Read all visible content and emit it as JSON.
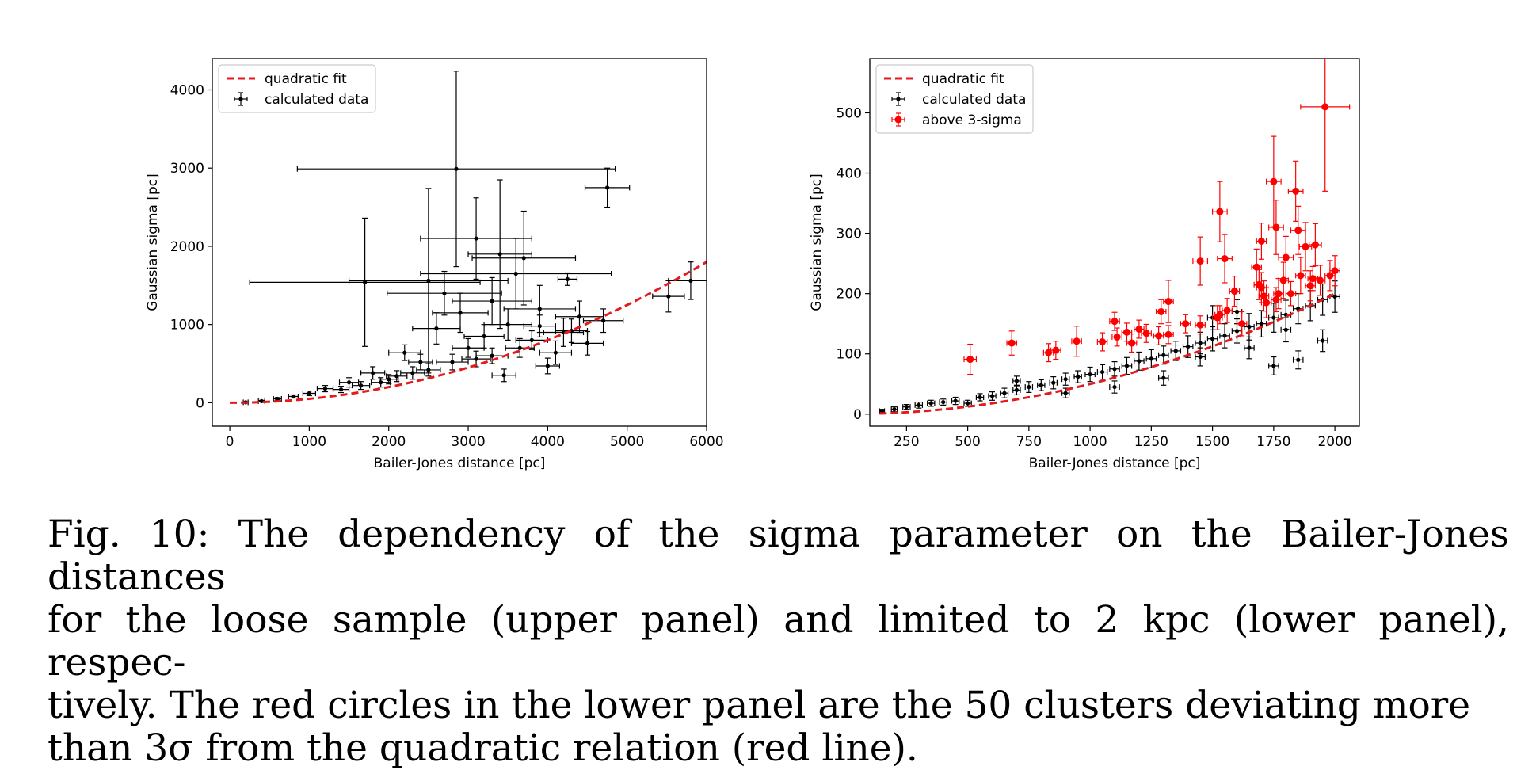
{
  "caption": {
    "line1": "Fig. 10: The dependency of the sigma parameter on the Bailer-Jones distances",
    "line2": "for the loose sample (upper panel) and limited to 2 kpc (lower panel), respec-",
    "line3": "tively. The red circles in the lower panel are the 50 clusters deviating more",
    "line4": "than 3σ from the quadratic relation (red line)."
  },
  "colors": {
    "fit": "#e41a1c",
    "data": "#000000",
    "outlier": "#ff0000"
  },
  "chart_data": [
    {
      "type": "scatter",
      "xlabel": "Bailer-Jones distance [pc]",
      "ylabel": "Gaussian sigma [pc]",
      "xlim": [
        -220,
        6000
      ],
      "ylim": [
        -300,
        4400
      ],
      "xticks": [
        0,
        1000,
        2000,
        3000,
        4000,
        5000,
        6000
      ],
      "yticks": [
        0,
        1000,
        2000,
        3000,
        4000
      ],
      "legend_position": "upper-left",
      "fit": {
        "name": "quadratic fit",
        "a": 5e-05,
        "x_range": [
          0,
          6000
        ]
      },
      "series": [
        {
          "name": "calculated data",
          "points": [
            [
              2850,
              2990,
              2000,
              1250
            ],
            [
              4750,
              2750,
              280,
              250
            ],
            [
              3100,
              2100,
              700,
              520
            ],
            [
              3700,
              1850,
              650,
              600
            ],
            [
              3400,
              1900,
              400,
              950
            ],
            [
              1700,
              1540,
              1450,
              820
            ],
            [
              2500,
              1560,
              1000,
              1180
            ],
            [
              4250,
              1580,
              120,
              80
            ],
            [
              3600,
              1650,
              1200,
              450
            ],
            [
              2700,
              1400,
              720,
              280
            ],
            [
              5520,
              1360,
              200,
              200
            ],
            [
              5800,
              1560,
              280,
              240
            ],
            [
              3300,
              1300,
              500,
              300
            ],
            [
              3900,
              1200,
              450,
              300
            ],
            [
              2900,
              1150,
              350,
              250
            ],
            [
              4400,
              1100,
              300,
              200
            ],
            [
              4700,
              1050,
              250,
              150
            ],
            [
              3500,
              1000,
              300,
              200
            ],
            [
              2600,
              950,
              300,
              200
            ],
            [
              4200,
              900,
              250,
              180
            ],
            [
              4500,
              760,
              200,
              150
            ],
            [
              3200,
              850,
              250,
              150
            ],
            [
              3800,
              800,
              200,
              120
            ],
            [
              4100,
              640,
              200,
              150
            ],
            [
              3000,
              700,
              200,
              120
            ],
            [
              2200,
              640,
              200,
              100
            ],
            [
              4000,
              470,
              150,
              100
            ],
            [
              2400,
              520,
              150,
              100
            ],
            [
              1800,
              380,
              150,
              80
            ],
            [
              3450,
              350,
              150,
              80
            ],
            [
              1500,
              260,
              120,
              60
            ],
            [
              2000,
              300,
              120,
              60
            ],
            [
              1200,
              180,
              100,
              40
            ],
            [
              1000,
              120,
              80,
              30
            ],
            [
              800,
              80,
              60,
              20
            ],
            [
              600,
              50,
              50,
              15
            ],
            [
              400,
              20,
              40,
              10
            ],
            [
              200,
              5,
              30,
              5
            ],
            [
              2800,
              520,
              200,
              100
            ],
            [
              3300,
              600,
              200,
              100
            ],
            [
              2500,
              420,
              150,
              80
            ],
            [
              3650,
              700,
              180,
              120
            ],
            [
              4300,
              920,
              200,
              150
            ],
            [
              2300,
              380,
              150,
              80
            ],
            [
              1900,
              260,
              120,
              60
            ],
            [
              1400,
              170,
              100,
              40
            ],
            [
              3100,
              560,
              180,
              100
            ],
            [
              3900,
              980,
              200,
              140
            ],
            [
              2100,
              340,
              130,
              70
            ],
            [
              1650,
              220,
              110,
              50
            ]
          ]
        }
      ]
    },
    {
      "type": "scatter",
      "xlabel": "Bailer-Jones distance [pc]",
      "ylabel": "Gaussian sigma [pc]",
      "xlim": [
        100,
        2100
      ],
      "ylim": [
        -20,
        590
      ],
      "xticks": [
        250,
        500,
        750,
        1000,
        1250,
        1500,
        1750,
        2000
      ],
      "yticks": [
        0,
        100,
        200,
        300,
        400,
        500
      ],
      "legend_position": "upper-left",
      "fit": {
        "name": "quadratic fit",
        "a": 5e-05,
        "x_range": [
          140,
          2000
        ]
      },
      "series": [
        {
          "name": "calculated data",
          "points": [
            [
              150,
              5,
              10,
              3
            ],
            [
              200,
              8,
              12,
              4
            ],
            [
              250,
              12,
              15,
              4
            ],
            [
              300,
              15,
              15,
              5
            ],
            [
              350,
              18,
              15,
              5
            ],
            [
              400,
              20,
              15,
              5
            ],
            [
              450,
              22,
              15,
              6
            ],
            [
              500,
              18,
              15,
              5
            ],
            [
              550,
              28,
              15,
              6
            ],
            [
              600,
              30,
              15,
              7
            ],
            [
              650,
              35,
              15,
              8
            ],
            [
              700,
              40,
              15,
              8
            ],
            [
              750,
              45,
              15,
              9
            ],
            [
              800,
              48,
              15,
              9
            ],
            [
              850,
              52,
              15,
              10
            ],
            [
              900,
              58,
              15,
              10
            ],
            [
              950,
              62,
              15,
              10
            ],
            [
              1000,
              66,
              20,
              12
            ],
            [
              1050,
              70,
              20,
              12
            ],
            [
              1100,
              75,
              20,
              12
            ],
            [
              1150,
              80,
              20,
              14
            ],
            [
              1200,
              88,
              20,
              15
            ],
            [
              1250,
              92,
              20,
              15
            ],
            [
              1300,
              98,
              20,
              15
            ],
            [
              1350,
              105,
              20,
              16
            ],
            [
              1400,
              112,
              20,
              18
            ],
            [
              1450,
              118,
              20,
              18
            ],
            [
              1500,
              125,
              20,
              20
            ],
            [
              1550,
              130,
              20,
              20
            ],
            [
              1600,
              138,
              20,
              20
            ],
            [
              1650,
              145,
              20,
              22
            ],
            [
              1700,
              150,
              20,
              22
            ],
            [
              1750,
              160,
              20,
              24
            ],
            [
              1800,
              165,
              20,
              24
            ],
            [
              1850,
              175,
              20,
              25
            ],
            [
              1900,
              180,
              20,
              25
            ],
            [
              1950,
              190,
              20,
              26
            ],
            [
              2000,
              195,
              20,
              26
            ],
            [
              1950,
              122,
              20,
              18
            ],
            [
              1850,
              90,
              20,
              15
            ],
            [
              1750,
              80,
              20,
              15
            ],
            [
              1600,
              170,
              20,
              20
            ],
            [
              1450,
              95,
              20,
              15
            ],
            [
              1300,
              60,
              20,
              12
            ],
            [
              1100,
              45,
              20,
              10
            ],
            [
              900,
              35,
              15,
              8
            ],
            [
              700,
              55,
              15,
              8
            ],
            [
              1500,
              160,
              20,
              20
            ],
            [
              1800,
              140,
              20,
              20
            ],
            [
              1650,
              110,
              20,
              18
            ]
          ]
        },
        {
          "name": "above 3-sigma",
          "points": [
            [
              510,
              91,
              25,
              25
            ],
            [
              680,
              118,
              20,
              20
            ],
            [
              830,
              102,
              20,
              15
            ],
            [
              860,
              106,
              20,
              15
            ],
            [
              945,
              121,
              20,
              25
            ],
            [
              1100,
              154,
              20,
              15
            ],
            [
              1110,
              128,
              20,
              15
            ],
            [
              1150,
              136,
              20,
              15
            ],
            [
              1170,
              118,
              20,
              15
            ],
            [
              1200,
              141,
              20,
              15
            ],
            [
              1230,
              134,
              20,
              15
            ],
            [
              1290,
              170,
              20,
              20
            ],
            [
              1320,
              187,
              20,
              35
            ],
            [
              1320,
              132,
              20,
              15
            ],
            [
              1450,
              254,
              30,
              40
            ],
            [
              1450,
              148,
              20,
              15
            ],
            [
              1520,
              160,
              20,
              20
            ],
            [
              1530,
              336,
              30,
              50
            ],
            [
              1550,
              258,
              30,
              40
            ],
            [
              1560,
              172,
              20,
              20
            ],
            [
              1590,
              204,
              20,
              25
            ],
            [
              1680,
              244,
              20,
              30
            ],
            [
              1690,
              215,
              20,
              25
            ],
            [
              1700,
              287,
              20,
              30
            ],
            [
              1710,
              196,
              20,
              25
            ],
            [
              1720,
              185,
              20,
              25
            ],
            [
              1750,
              386,
              30,
              75
            ],
            [
              1760,
              310,
              30,
              45
            ],
            [
              1770,
              200,
              20,
              25
            ],
            [
              1790,
              222,
              20,
              30
            ],
            [
              1800,
              260,
              30,
              35
            ],
            [
              1840,
              370,
              30,
              50
            ],
            [
              1850,
              305,
              30,
              40
            ],
            [
              1860,
              230,
              20,
              30
            ],
            [
              1880,
              278,
              25,
              40
            ],
            [
              1900,
              213,
              20,
              25
            ],
            [
              1920,
              281,
              25,
              35
            ],
            [
              1940,
              222,
              20,
              25
            ],
            [
              1960,
              510,
              100,
              140
            ],
            [
              1980,
              230,
              20,
              25
            ],
            [
              2000,
              238,
              20,
              25
            ],
            [
              1760,
              190,
              20,
              20
            ],
            [
              1620,
              150,
              20,
              20
            ],
            [
              1530,
              165,
              20,
              15
            ],
            [
              1700,
              210,
              20,
              25
            ],
            [
              1820,
              200,
              20,
              20
            ],
            [
              1910,
              225,
              20,
              20
            ],
            [
              1390,
              150,
              20,
              15
            ],
            [
              1280,
              130,
              20,
              15
            ],
            [
              1050,
              120,
              20,
              15
            ]
          ]
        }
      ]
    }
  ]
}
